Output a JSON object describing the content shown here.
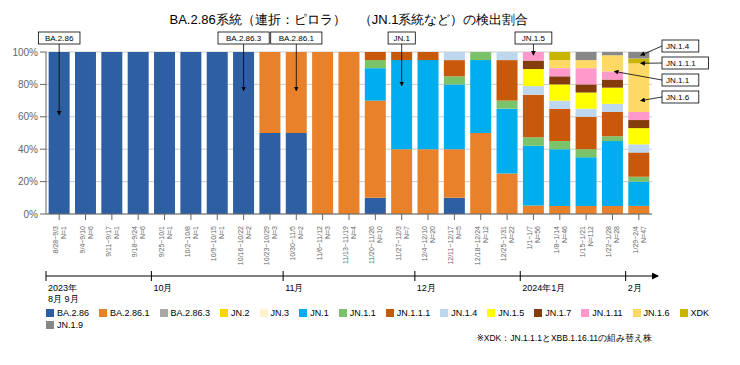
{
  "chart_data": {
    "type": "bar",
    "stacked": true,
    "grid": true,
    "legend": "bottom",
    "title": "BA.2.86系統（連折：ピロラ）　（JN.1系統など）の検出割合",
    "categories": [
      "8/28~9/3\nN=1",
      "9/4~9/10\nN=6",
      "9/11~9/17\nN=1",
      "9/18~9/24\nN=6",
      "9/25~10/1\nN=1",
      "10/2~10/8\nN=1",
      "10/9~10/15\nN=1",
      "10/16~10/22\nN=2",
      "10/23~10/29\nN=3",
      "10/30~11/5\nN=2",
      "11/6~11/12\nN=3",
      "11/13~11/19\nN=4",
      "11/20~11/26\nN=10",
      "11/27~12/3\nN=7",
      "12/4~12/10\nN=20",
      "12/11~12/17\nN=5",
      "12/18~12/24\nN=12",
      "12/25~1/31\nN=22",
      "1/1~1/7\nN=56",
      "1/8~1/14\nN=46",
      "1/15~1/21\nN=112",
      "1/22~1/28\nN=28",
      "1/29~2/4\nN=47"
    ],
    "series": [
      {
        "name": "BA.2.86",
        "color": "#2E5FA3",
        "values": [
          100,
          100,
          100,
          100,
          100,
          100,
          100,
          100,
          50,
          50,
          0,
          0,
          10,
          0,
          0,
          10,
          0,
          0,
          0,
          0,
          0,
          0,
          0
        ]
      },
      {
        "name": "BA.2.86.1",
        "color": "#E8812A",
        "values": [
          0,
          0,
          0,
          0,
          0,
          0,
          0,
          0,
          50,
          50,
          100,
          100,
          60,
          40,
          40,
          30,
          50,
          25,
          5.263158,
          5,
          5,
          5,
          5
        ]
      },
      {
        "name": "BA.2.86.3",
        "color": "#A8A8A8",
        "values": [
          0,
          0,
          0,
          0,
          0,
          0,
          0,
          0,
          0,
          0,
          0,
          0,
          0,
          0,
          0,
          0,
          0,
          0,
          0,
          0,
          0,
          0,
          0
        ]
      },
      {
        "name": "JN.2",
        "color": "#FFD700",
        "values": [
          0,
          0,
          0,
          0,
          0,
          0,
          0,
          0,
          0,
          0,
          0,
          0,
          0,
          0,
          0,
          0,
          0,
          0,
          0,
          0,
          0,
          0,
          0
        ]
      },
      {
        "name": "JN.3",
        "color": "#FFF2CC",
        "values": [
          0,
          0,
          0,
          0,
          0,
          0,
          0,
          0,
          0,
          0,
          0,
          0,
          0,
          0,
          0,
          0,
          0,
          0,
          0,
          0,
          0,
          0,
          0
        ]
      },
      {
        "name": "JN.1",
        "color": "#00AEEF",
        "values": [
          0,
          0,
          0,
          0,
          0,
          0,
          0,
          0,
          0,
          0,
          0,
          0,
          20,
          55,
          55,
          40,
          45,
          40,
          36.842105,
          35,
          30,
          40,
          15
        ]
      },
      {
        "name": "JN.1.1",
        "color": "#7AC36A",
        "values": [
          0,
          0,
          0,
          0,
          0,
          0,
          0,
          0,
          0,
          0,
          0,
          0,
          5,
          0,
          0,
          5,
          5,
          5,
          5.263158,
          5,
          5,
          3,
          3
        ]
      },
      {
        "name": "JN.1.1.1",
        "color": "#C8580A",
        "values": [
          0,
          0,
          0,
          0,
          0,
          0,
          0,
          0,
          0,
          0,
          0,
          0,
          5,
          5,
          5,
          10,
          0,
          25,
          26.315789,
          20,
          20,
          15,
          15
        ]
      },
      {
        "name": "JN.1.4",
        "color": "#BDD7EE",
        "values": [
          0,
          0,
          0,
          0,
          0,
          0,
          0,
          0,
          0,
          0,
          0,
          0,
          0,
          0,
          0,
          5,
          0,
          5,
          5.263158,
          5,
          5,
          5,
          5
        ]
      },
      {
        "name": "JN.1.5",
        "color": "#FFFF00",
        "values": [
          0,
          0,
          0,
          0,
          0,
          0,
          0,
          0,
          0,
          0,
          0,
          0,
          0,
          0,
          0,
          0,
          0,
          0,
          10.526316,
          10,
          10,
          10,
          10
        ]
      },
      {
        "name": "JN.1.7",
        "color": "#843C0C",
        "values": [
          0,
          0,
          0,
          0,
          0,
          0,
          0,
          0,
          0,
          0,
          0,
          0,
          0,
          0,
          0,
          0,
          0,
          0,
          5.263158,
          5,
          5,
          5,
          5
        ]
      },
      {
        "name": "JN.1.11",
        "color": "#FF99CC",
        "values": [
          0,
          0,
          0,
          0,
          0,
          0,
          0,
          0,
          0,
          0,
          0,
          0,
          0,
          0,
          0,
          0,
          0,
          0,
          5.263158,
          5,
          10,
          5,
          5
        ]
      },
      {
        "name": "JN.1.6",
        "color": "#FFD966",
        "values": [
          0,
          0,
          0,
          0,
          0,
          0,
          0,
          0,
          0,
          0,
          0,
          0,
          0,
          0,
          0,
          0,
          0,
          0,
          0,
          5,
          5,
          10,
          30
        ]
      },
      {
        "name": "XDK",
        "color": "#C9B500",
        "values": [
          0,
          0,
          0,
          0,
          0,
          0,
          0,
          0,
          0,
          0,
          0,
          0,
          0,
          0,
          0,
          0,
          0,
          0,
          0,
          5,
          0,
          0,
          3
        ]
      },
      {
        "name": "JN.1.9",
        "color": "#888888",
        "values": [
          0,
          0,
          0,
          0,
          0,
          0,
          0,
          0,
          0,
          0,
          0,
          0,
          0,
          0,
          0,
          0,
          0,
          0,
          0,
          0,
          5,
          2,
          4
        ]
      }
    ],
    "ylim": [
      0,
      100
    ],
    "yticks": [
      {
        "value": 0,
        "label": "0%"
      },
      {
        "value": 20,
        "label": "20%"
      },
      {
        "value": 40,
        "label": "40%"
      },
      {
        "value": 60,
        "label": "60%"
      },
      {
        "value": 80,
        "label": "80%"
      },
      {
        "value": 100,
        "label": "100%"
      }
    ],
    "annotations": [
      {
        "text": "BA.2.86",
        "x": "8/28~9/3\nN=1",
        "y": 60
      },
      {
        "text": "BA.2.86.3",
        "x": "10/16~10/22\nN=2",
        "y": 75
      },
      {
        "text": "BA.2.86.1",
        "x": "10/30~11/5\nN=2",
        "y": 75
      },
      {
        "text": "JN.1",
        "x": "11/27~12/3\nN=7",
        "y": 78
      },
      {
        "text": "JN.1.5",
        "x": "1/1~1/7\nN=56",
        "y": 97
      },
      {
        "text": "JN.1.4",
        "x": "1/29~2/4\nN=47",
        "y": 98
      },
      {
        "text": "JN.1.1.1",
        "x": "1/29~2/4\nN=47",
        "y": 93
      },
      {
        "text": "JN.1.1",
        "x": "1/22~1/28\nN=28",
        "y": 88
      },
      {
        "text": "JN.1.6",
        "x": "1/29~2/4\nN=47",
        "y": 70
      }
    ],
    "timeline": [
      {
        "text": "2023年\n8月 9月",
        "x": "8/28~9/3\nN=1"
      },
      {
        "text": "10月",
        "x": "9/25~10/1\nN=1"
      },
      {
        "text": "11月",
        "x": "10/30~11/5\nN=2"
      },
      {
        "text": "12月",
        "x": "12/4~12/10\nN=20"
      },
      {
        "text": "2024年1月",
        "x": "1/1~1/7\nN=56"
      },
      {
        "text": "2月",
        "x": "1/29~2/4\nN=47"
      }
    ],
    "caption": "※XDK：JN.1.1.1とXBB.1.16.11の組み替え株"
  }
}
